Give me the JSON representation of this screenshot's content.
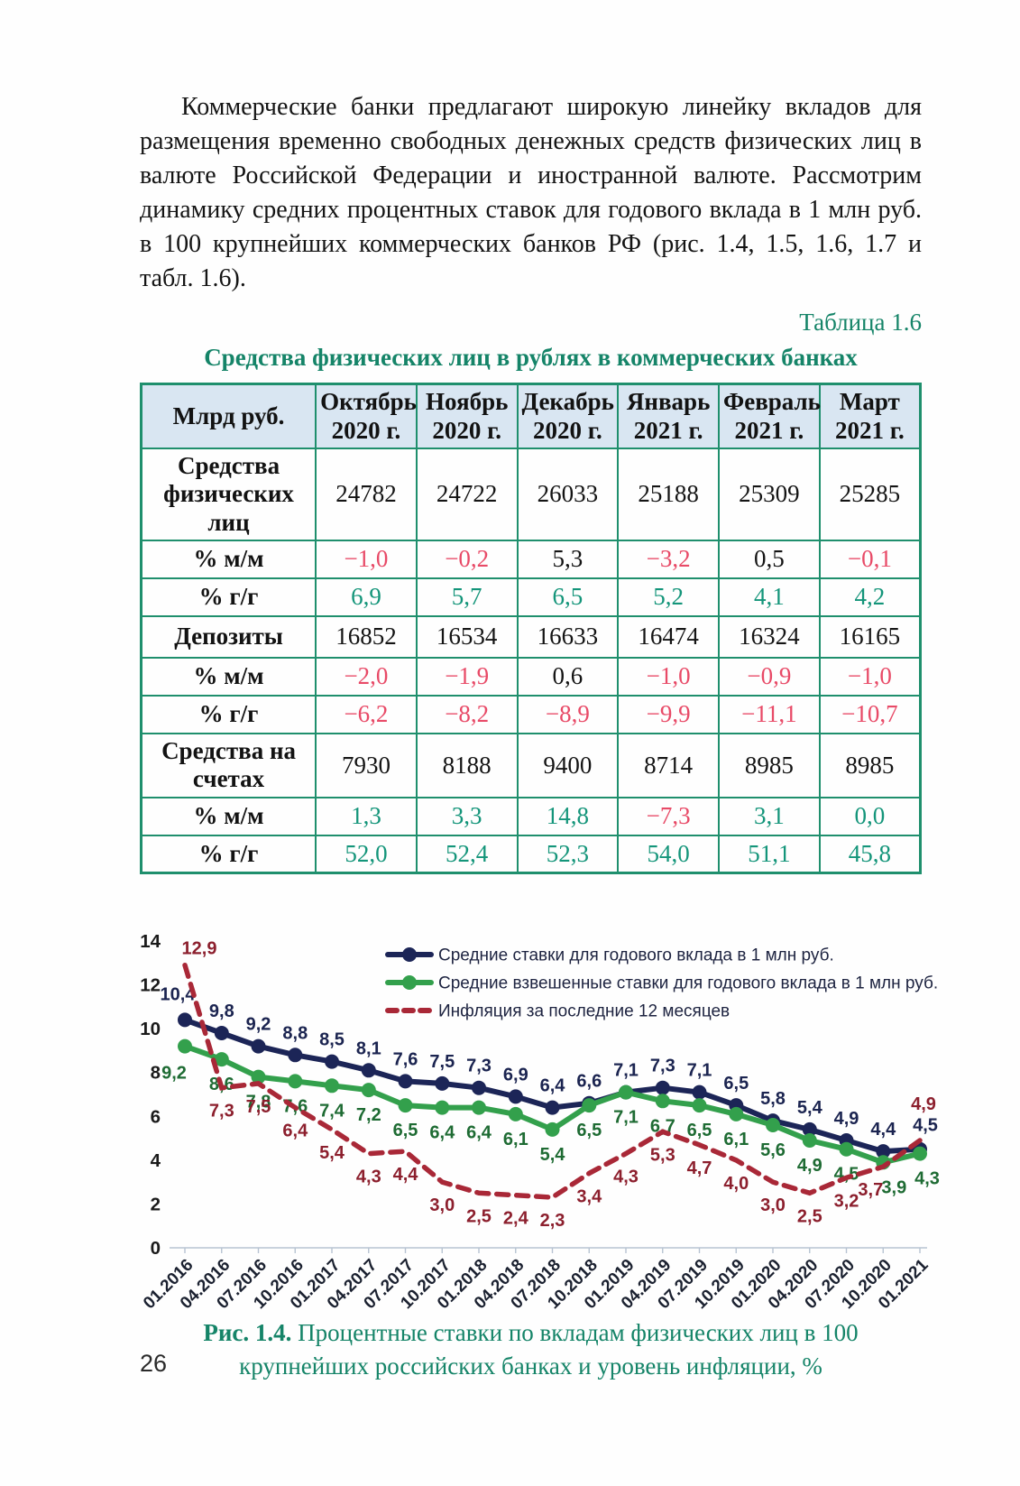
{
  "page": {
    "paragraph": "Коммерческие банки предлагают широкую линейку вкладов для размещения временно свободных денежных средств физических лиц в валюте Российской Федерации и иностранной валюте. Рассмотрим динамику средних процентных ставок для годового вклада в 1 млн руб. в 100 крупнейших коммерческих банков РФ (рис. 1.4, 1.5, 1.6, 1.7 и табл. 1.6).",
    "page_number": "26"
  },
  "table": {
    "label": "Таблица 1.6",
    "title": "Средства физических лиц в рублях в коммерческих банках",
    "columns": [
      "Млрд руб.",
      "Октябрь 2020 г.",
      "Ноябрь 2020 г.",
      "Декабрь 2020 г.",
      "Январь 2021 г.",
      "Февраль 2021 г.",
      "Март 2021 г."
    ],
    "rows": [
      {
        "label": "Средства физических лиц",
        "values": [
          "24782",
          "24722",
          "26033",
          "25188",
          "25309",
          "25285"
        ],
        "styles": [
          "black",
          "black",
          "black",
          "black",
          "black",
          "black"
        ]
      },
      {
        "label": "% м/м",
        "values": [
          "−1,0",
          "−0,2",
          "5,3",
          "−3,2",
          "0,5",
          "−0,1"
        ],
        "styles": [
          "red",
          "red",
          "black",
          "red",
          "black",
          "red"
        ]
      },
      {
        "label": "% г/г",
        "values": [
          "6,9",
          "5,7",
          "6,5",
          "5,2",
          "4,1",
          "4,2"
        ],
        "styles": [
          "teal",
          "teal",
          "teal",
          "teal",
          "teal",
          "teal"
        ]
      },
      {
        "label": "Депозиты",
        "values": [
          "16852",
          "16534",
          "16633",
          "16474",
          "16324",
          "16165"
        ],
        "styles": [
          "black",
          "black",
          "black",
          "black",
          "black",
          "black"
        ]
      },
      {
        "label": "% м/м",
        "values": [
          "−2,0",
          "−1,9",
          "0,6",
          "−1,0",
          "−0,9",
          "−1,0"
        ],
        "styles": [
          "red",
          "red",
          "black",
          "red",
          "red",
          "red"
        ]
      },
      {
        "label": "% г/г",
        "values": [
          "−6,2",
          "−8,2",
          "−8,9",
          "−9,9",
          "−11,1",
          "−10,7"
        ],
        "styles": [
          "red",
          "red",
          "red",
          "red",
          "red",
          "red"
        ]
      },
      {
        "label": "Средства на счетах",
        "values": [
          "7930",
          "8188",
          "9400",
          "8714",
          "8985",
          "8985"
        ],
        "styles": [
          "black",
          "black",
          "black",
          "black",
          "black",
          "black"
        ]
      },
      {
        "label": "% м/м",
        "values": [
          "1,3",
          "3,3",
          "14,8",
          "−7,3",
          "3,1",
          "0,0"
        ],
        "styles": [
          "teal",
          "teal",
          "teal",
          "red",
          "teal",
          "teal"
        ]
      },
      {
        "label": "% г/г",
        "values": [
          "52,0",
          "52,4",
          "52,3",
          "54,0",
          "51,1",
          "45,8"
        ],
        "styles": [
          "teal",
          "teal",
          "teal",
          "teal",
          "teal",
          "teal"
        ]
      }
    ]
  },
  "figure": {
    "label": "Рис. 1.4.",
    "caption": "Процентные ставки по вкладам физических лиц в 100 крупнейших российских банках и уровень инфляции, %"
  },
  "chart_data": {
    "type": "line",
    "x": [
      "01.2016",
      "04.2016",
      "07.2016",
      "10.2016",
      "01.2017",
      "04.2017",
      "07.2017",
      "10.2017",
      "01.2018",
      "04.2018",
      "07.2018",
      "10.2018",
      "01.2019",
      "04.2019",
      "07.2019",
      "10.2019",
      "01.2020",
      "04.2020",
      "07.2020",
      "10.2020",
      "01.2021"
    ],
    "series": [
      {
        "name": "Средние ставки для годового вклада в 1 млн руб.",
        "style": "solid",
        "color": "#1c2557",
        "label_color": "#1b2450",
        "values": [
          10.4,
          9.8,
          9.2,
          8.8,
          8.5,
          8.1,
          7.6,
          7.5,
          7.3,
          6.9,
          6.4,
          6.6,
          7.1,
          7.3,
          7.1,
          6.5,
          5.8,
          5.4,
          4.9,
          4.4,
          4.5
        ]
      },
      {
        "name": "Средние взвешенные ставки для годового вклада в 1 млн руб.",
        "style": "solid",
        "color": "#33a04c",
        "label_color": "#1e6b33",
        "values": [
          9.2,
          8.6,
          7.8,
          7.6,
          7.4,
          7.2,
          6.5,
          6.4,
          6.4,
          6.1,
          5.4,
          6.5,
          7.1,
          6.7,
          6.5,
          6.1,
          5.6,
          4.9,
          4.5,
          3.9,
          4.3
        ]
      },
      {
        "name": "Инфляция за последние 12 месяцев",
        "style": "dashed",
        "color": "#a92837",
        "label_color": "#8c1f2d",
        "values": [
          12.9,
          7.3,
          7.5,
          6.4,
          5.4,
          4.3,
          4.4,
          3.0,
          2.5,
          2.4,
          2.3,
          3.4,
          4.3,
          5.3,
          4.7,
          4.0,
          3.0,
          2.5,
          3.2,
          3.7,
          4.9
        ]
      }
    ],
    "ylim": [
      0,
      14
    ],
    "yticks": [
      0,
      2,
      4,
      6,
      8,
      10,
      12,
      14
    ],
    "grid": false,
    "legend_position": "top-right",
    "point_labels": true,
    "decimal_separator": ","
  }
}
